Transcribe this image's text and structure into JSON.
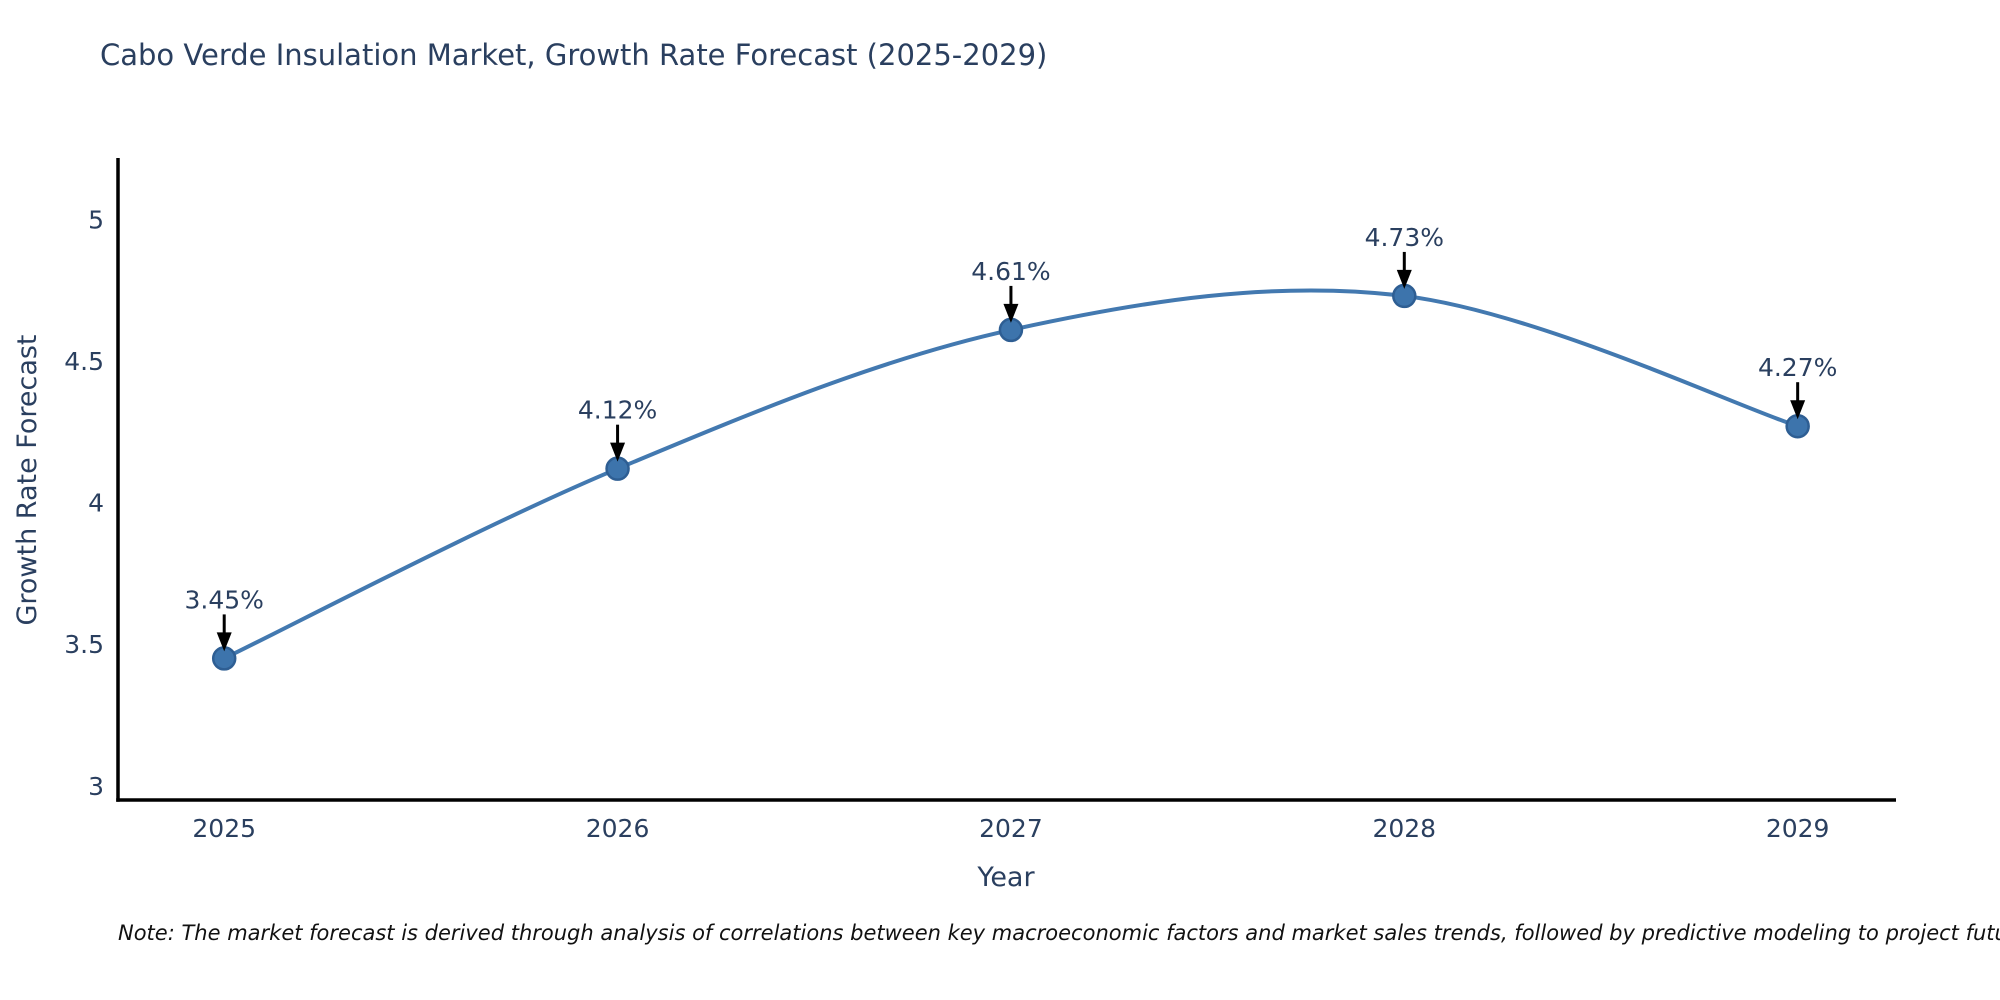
{
  "title": "Cabo Verde Insulation Market, Growth Rate Forecast (2025-2029)",
  "note": "Note: The market forecast is derived through analysis of correlations between key macroeconomic factors and market sales trends, followed by predictive modeling to project future sales",
  "chart_data": {
    "type": "line",
    "title": "Cabo Verde Insulation Market, Growth Rate Forecast (2025-2029)",
    "xlabel": "Year",
    "ylabel": "Growth Rate Forecast",
    "x": [
      2025,
      2026,
      2027,
      2028,
      2029
    ],
    "values": [
      3.45,
      4.12,
      4.61,
      4.73,
      4.27
    ],
    "point_labels": [
      "3.45%",
      "4.12%",
      "4.61%",
      "4.73%",
      "4.27%"
    ],
    "xticklabels": [
      "2025",
      "2026",
      "2027",
      "2028",
      "2029"
    ],
    "yticks": [
      3,
      3.5,
      4,
      4.5,
      5
    ],
    "yticklabels": [
      "3",
      "3.5",
      "4",
      "4.5",
      "5"
    ],
    "xlim": [
      2024.73,
      2029.25
    ],
    "ylim": [
      2.95,
      5.21
    ],
    "line_shape": "spline",
    "grid": false,
    "legend": "none",
    "annotations_have_arrows": true,
    "colors": {
      "line": "#4379b0",
      "marker_fill": "#3d74ac",
      "marker_edge": "#2e5e93",
      "text": "#2a3f5f",
      "axis_line": "#000000",
      "arrow": "#000000",
      "background": "#ffffff"
    }
  }
}
